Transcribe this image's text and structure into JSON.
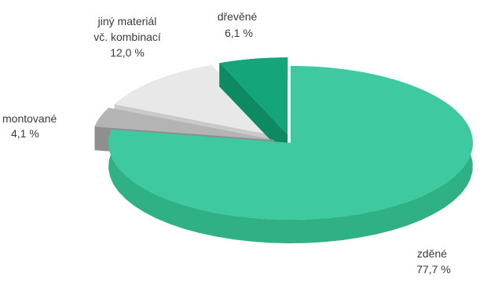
{
  "chart_data": {
    "type": "pie",
    "style": "3d-exploded",
    "slices": [
      {
        "label": "zděné",
        "value_text": "77,7 %",
        "value": 77.7,
        "color": "#3ec9a0",
        "side_color": "#2fb085"
      },
      {
        "label": "montované",
        "value_text": "4,1 %",
        "value": 4.1,
        "color": "#b4b4b4",
        "side_color": "#8f8f8f"
      },
      {
        "label_lines": [
          "jiný materiál",
          "vč. kombinací"
        ],
        "value_text": "12,0 %",
        "value": 12.0,
        "color": "#e8e8e8",
        "side_color": "#c9c9c9"
      },
      {
        "label": "dřevěné",
        "value_text": "6,1 %",
        "value": 6.1,
        "color": "#14a57a",
        "side_color": "#0e8a63"
      }
    ]
  }
}
